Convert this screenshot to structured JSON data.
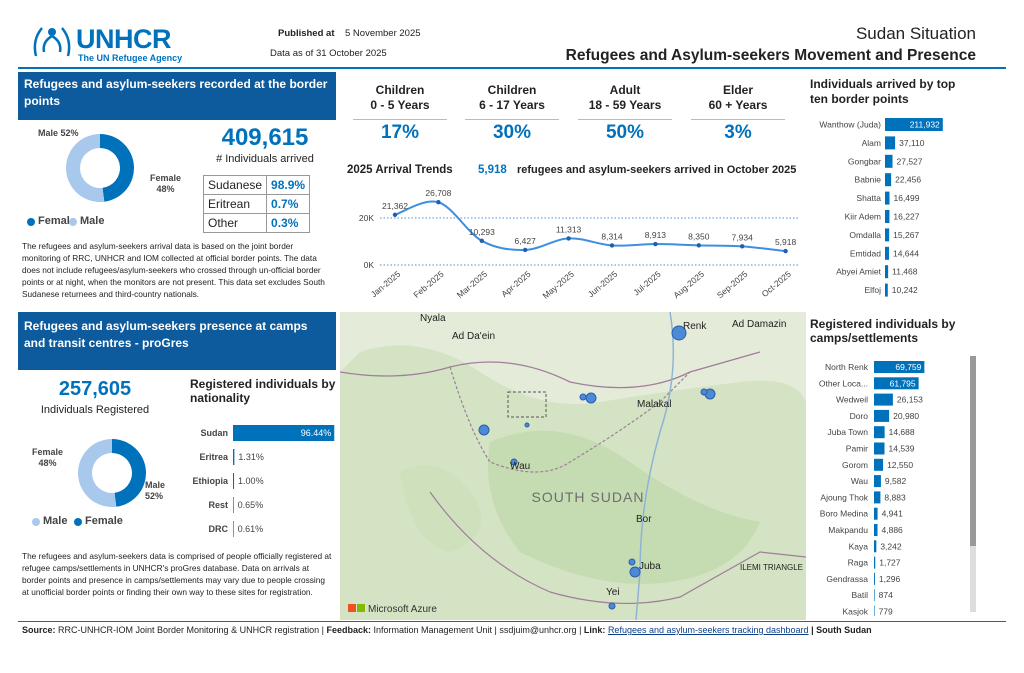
{
  "header": {
    "logo": "UNHCR",
    "tagline": "The UN Refugee Agency",
    "published_label": "Published at",
    "published_date": "5 November 2025",
    "data_as_of": "Data as of 31 October 2025",
    "situation": "Sudan Situation",
    "title": "Refugees and Asylum-seekers Movement and Presence"
  },
  "border_section": {
    "title": "Refugees and asylum-seekers recorded at the border points",
    "total": "409,615",
    "total_label": "# Individuals arrived",
    "sex": {
      "type": "pie",
      "series": [
        {
          "name": "Female",
          "value": 48,
          "label": "Female\n48%",
          "color": "#0072bc"
        },
        {
          "name": "Male",
          "value": 52,
          "label": "Male 52%",
          "color": "#a9c9ec"
        }
      ]
    },
    "nationality": [
      [
        "Sudanese",
        "98.9%"
      ],
      [
        "Eritrean",
        "0.7%"
      ],
      [
        "Other",
        "0.3%"
      ]
    ],
    "note": "The refugees and asylum-seekers arrival data is based on the joint border monitoring of RRC, UNHCR and IOM collected at official border points. The data does not include refugees/asylum-seekers who crossed through un-official border points or at night, when the monitors are not present. This data set excludes South Sudanese returnees and third-country nationals."
  },
  "age_groups": [
    {
      "group": "Children",
      "range": "0 - 5 Years",
      "share": "17%"
    },
    {
      "group": "Children",
      "range": "6 - 17 Years",
      "share": "30%"
    },
    {
      "group": "Adult",
      "range": "18 - 59 Years",
      "share": "50%"
    },
    {
      "group": "Elder",
      "range": "60 + Years",
      "share": "3%"
    }
  ],
  "arrival_trends": {
    "type": "line",
    "title": "2025 Arrival Trends",
    "highlight": "5,918",
    "highlight_text": "refugees and asylum-seekers arrived in October 2025",
    "x": [
      "Jan-2025",
      "Feb-2025",
      "Mar-2025",
      "Apr-2025",
      "May-2025",
      "Jun-2025",
      "Jul-2025",
      "Aug-2025",
      "Sep-2025",
      "Oct-2025"
    ],
    "values": [
      21362,
      26708,
      10293,
      6427,
      11313,
      8314,
      8913,
      8350,
      7934,
      5918
    ],
    "value_labels": [
      "21,362",
      "26,708",
      "10,293",
      "6,427",
      "11,313",
      "8,314",
      "8,913",
      "8,350",
      "7,934",
      "5,918"
    ],
    "color": "#3d8fe0",
    "ylim": [
      0,
      30000
    ],
    "yticks": [
      {
        "value": 0,
        "label": "0K"
      },
      {
        "value": 20000,
        "label": "20K"
      }
    ],
    "grid": true
  },
  "border_points": {
    "type": "bar",
    "title": "Individuals arrived by top ten border points",
    "categories": [
      "Wanthow (Juda)",
      "Alam",
      "Gongbar",
      "Babnie",
      "Shatta",
      "Kiir Adem",
      "Omdalla",
      "Emtidad",
      "Abyei Amiet",
      "Elfoj"
    ],
    "values": [
      211932,
      37110,
      27527,
      22456,
      16499,
      16227,
      15267,
      14644,
      11468,
      10242
    ],
    "value_labels": [
      "211,932",
      "37,110",
      "27,527",
      "22,456",
      "16,499",
      "16,227",
      "15,267",
      "14,644",
      "11,468",
      "10,242"
    ],
    "color": "#0072bc",
    "xlim": [
      0,
      220000
    ]
  },
  "presence_section": {
    "title": "Refugees and asylum-seekers presence at camps and transit centres - proGres",
    "total": "257,605",
    "total_label": "Individuals Registered",
    "sex": {
      "type": "pie",
      "series": [
        {
          "name": "Female",
          "value": 48,
          "label": "Female\n48%",
          "color": "#0072bc"
        },
        {
          "name": "Male",
          "value": 52,
          "label": "Male\n52%",
          "color": "#a9c9ec"
        }
      ]
    },
    "nationality": {
      "type": "bar",
      "title": "Registered individuals by nationality",
      "categories": [
        "Sudan",
        "Eritrea",
        "Ethiopia",
        "Rest",
        "DRC"
      ],
      "values": [
        96.44,
        1.31,
        1.0,
        0.65,
        0.61
      ],
      "value_labels": [
        "96.44%",
        "1.31%",
        "1.00%",
        "0.65%",
        "0.61%"
      ],
      "color": "#0072bc",
      "xlim": [
        0,
        100
      ]
    },
    "note": "The refugees and asylum-seekers data is comprised of people officially registered at refugee camps/settlements in UNHCR's proGres database. Data on arrivals at border points and presence in camps/settlements may vary due to people crossing at unofficial border points or finding their own way to these sites for registration."
  },
  "map": {
    "labels": [
      "Nyala",
      "Ad Da'ein",
      "Renk",
      "Ad Damazin",
      "Malakal",
      "Wau",
      "SOUTH SUDAN",
      "Bor",
      "Juba",
      "Yei",
      "ILEMI TRIANGLE"
    ],
    "attribution": "Microsoft Azure"
  },
  "camps": {
    "type": "bar",
    "title": "Registered individuals by camps/settlements",
    "categories": [
      "North Renk",
      "Other Loca...",
      "Wedweil",
      "Doro",
      "Juba Town",
      "Pamir",
      "Gorom",
      "Wau",
      "Ajoung Thok",
      "Boro Medina",
      "Makpandu",
      "Kaya",
      "Raga",
      "Gendrassa",
      "Batil",
      "Kasjok"
    ],
    "values": [
      69759,
      61795,
      26153,
      20980,
      14688,
      14539,
      12550,
      9582,
      8883,
      4941,
      4886,
      3242,
      1727,
      1296,
      874,
      779
    ],
    "value_labels": [
      "69,759",
      "61,795",
      "26,153",
      "20,980",
      "14,688",
      "14,539",
      "12,550",
      "9,582",
      "8,883",
      "4,941",
      "4,886",
      "3,242",
      "1,727",
      "1,296",
      "874",
      "779"
    ],
    "color": "#0072bc",
    "xlim": [
      0,
      72000
    ]
  },
  "footer": {
    "source_label": "Source:",
    "source": "RRC-UNHCR-IOM Joint Border Monitoring & UNHCR registration |",
    "feedback_label": "Feedback:",
    "feedback": "Information Management Unit | ssdjuim@unhcr.org |",
    "link_label": "Link:",
    "link": "Refugees and asylum-seekers tracking dashboard",
    "separator": "|",
    "country": "South Sudan"
  }
}
